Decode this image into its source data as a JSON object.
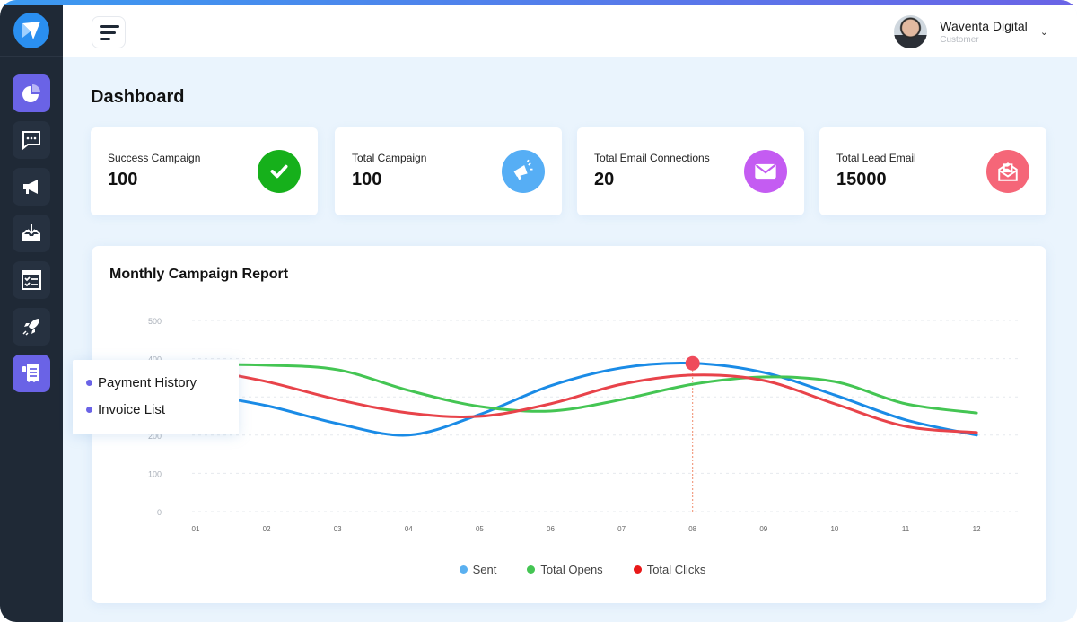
{
  "header": {
    "user_name": "Waventa Digital",
    "user_role": "Customer"
  },
  "page_title": "Dashboard",
  "sidebar": {
    "items": [
      {
        "icon": "pie-chart-icon",
        "active": true
      },
      {
        "icon": "chat-icon",
        "active": false
      },
      {
        "icon": "megaphone-icon",
        "active": false
      },
      {
        "icon": "inbox-download-icon",
        "active": false
      },
      {
        "icon": "checklist-icon",
        "active": false
      },
      {
        "icon": "rocket-icon",
        "active": false
      },
      {
        "icon": "receipt-icon",
        "active": true
      }
    ]
  },
  "popup_menu": {
    "items": [
      "Payment History",
      "Invoice List"
    ]
  },
  "stats": [
    {
      "label": "Success Campaign",
      "value": "100",
      "icon": "check-icon",
      "color": "#16b01b"
    },
    {
      "label": "Total Campaign",
      "value": "100",
      "icon": "megaphone-icon",
      "color": "#56aef5"
    },
    {
      "label": "Total Email Connections",
      "value": "20",
      "icon": "envelope-icon",
      "color": "#c45cf2"
    },
    {
      "label": "Total Lead Email",
      "value": "15000",
      "icon": "email-marketing-icon",
      "color": "#f56678"
    }
  ],
  "chart_data": {
    "type": "line",
    "title": "Monthly Campaign Report",
    "categories": [
      "01",
      "02",
      "03",
      "04",
      "05",
      "06",
      "07",
      "08",
      "09",
      "10",
      "11",
      "12"
    ],
    "yticks": [
      "0",
      "100",
      "200",
      "300",
      "400",
      "500"
    ],
    "ylim": [
      0,
      500
    ],
    "grid": true,
    "legend_position": "bottom",
    "highlight": {
      "category": "08",
      "series": "Sent"
    },
    "series": [
      {
        "name": "Sent",
        "color": "#1a8be6",
        "legend_color": "#5ab0f0",
        "values": [
          310,
          277,
          230,
          200,
          254,
          329,
          376,
          388,
          364,
          305,
          240,
          200
        ]
      },
      {
        "name": "Total Opens",
        "color": "#44c553",
        "legend_color": "#44c553",
        "values": [
          385,
          383,
          371,
          317,
          275,
          263,
          293,
          333,
          352,
          340,
          282,
          258
        ]
      },
      {
        "name": "Total Clicks",
        "color": "#e8434a",
        "legend_color": "#e81818",
        "values": [
          375,
          340,
          293,
          258,
          249,
          282,
          333,
          357,
          343,
          282,
          223,
          207
        ]
      }
    ]
  }
}
